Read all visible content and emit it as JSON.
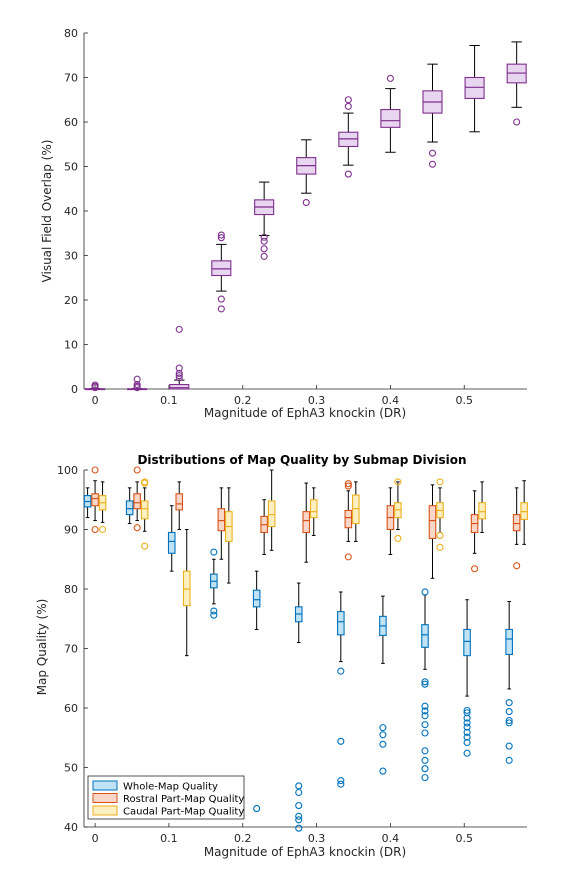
{
  "chart_data": [
    {
      "type": "boxplot",
      "title": "",
      "xlabel": "Magnitude of EphA3 knockin (DR)",
      "ylabel": "Visual Field Overlap (%)",
      "xlim": [
        -0.015,
        0.585
      ],
      "ylim": [
        0,
        80
      ],
      "xticks": [
        0,
        0.1,
        0.2,
        0.3,
        0.4,
        0.5
      ],
      "yticks": [
        0,
        10,
        20,
        30,
        40,
        50,
        60,
        70,
        80
      ],
      "grid": false,
      "colors": {
        "box_fill": "#e8d5ef",
        "box_edge": "#7e2f8e",
        "whisker": "#000000",
        "outlier": "#7e2f8e"
      },
      "boxes": [
        {
          "x": 0.0,
          "q1": 0.0,
          "median": 0.0,
          "q3": 0.05,
          "wlo": 0.0,
          "whi": 0.1,
          "outliers": [
            0.3,
            0.6,
            0.9
          ]
        },
        {
          "x": 0.057,
          "q1": 0.0,
          "median": 0.0,
          "q3": 0.05,
          "wlo": 0.0,
          "whi": 0.1,
          "outliers": [
            0.3,
            0.6,
            1.0,
            2.2
          ]
        },
        {
          "x": 0.114,
          "q1": 0.0,
          "median": 0.3,
          "q3": 1.0,
          "wlo": 0.0,
          "whi": 2.0,
          "outliers": [
            2.5,
            3.0,
            3.5,
            4.7,
            13.4
          ]
        },
        {
          "x": 0.171,
          "q1": 25.5,
          "median": 27.0,
          "q3": 28.8,
          "wlo": 22.0,
          "whi": 32.5,
          "outliers": [
            18.0,
            20.2,
            34.0,
            34.6
          ]
        },
        {
          "x": 0.229,
          "q1": 39.2,
          "median": 40.9,
          "q3": 42.5,
          "wlo": 34.5,
          "whi": 46.5,
          "outliers": [
            29.8,
            31.5,
            33.2,
            34.1
          ]
        },
        {
          "x": 0.286,
          "q1": 48.3,
          "median": 50.2,
          "q3": 52.0,
          "wlo": 44.0,
          "whi": 56.0,
          "outliers": [
            41.9
          ]
        },
        {
          "x": 0.343,
          "q1": 54.5,
          "median": 56.2,
          "q3": 57.7,
          "wlo": 50.3,
          "whi": 62.0,
          "outliers": [
            48.3,
            63.5,
            65.0
          ]
        },
        {
          "x": 0.4,
          "q1": 58.8,
          "median": 60.3,
          "q3": 62.8,
          "wlo": 53.2,
          "whi": 67.5,
          "outliers": [
            69.8
          ]
        },
        {
          "x": 0.457,
          "q1": 62.0,
          "median": 64.5,
          "q3": 67.0,
          "wlo": 55.5,
          "whi": 73.0,
          "outliers": [
            50.5,
            53.0
          ]
        },
        {
          "x": 0.514,
          "q1": 65.3,
          "median": 67.8,
          "q3": 70.0,
          "wlo": 57.8,
          "whi": 77.2,
          "outliers": []
        },
        {
          "x": 0.571,
          "q1": 68.8,
          "median": 71.0,
          "q3": 73.0,
          "wlo": 63.3,
          "whi": 78.0,
          "outliers": [
            60.0
          ]
        }
      ]
    },
    {
      "type": "boxplot",
      "title": "Distributions of Map Quality by Submap Division",
      "xlabel": "Magnitude of EphA3 knockin (DR)",
      "ylabel": "Map Quality (%)",
      "xlim": [
        -0.015,
        0.585
      ],
      "ylim": [
        40,
        100
      ],
      "xticks": [
        0,
        0.1,
        0.2,
        0.3,
        0.4,
        0.5
      ],
      "yticks": [
        40,
        50,
        60,
        70,
        80,
        90,
        100
      ],
      "grid": false,
      "legend_position": "bottom-left",
      "series": [
        {
          "name": "Whole-Map Quality",
          "fill": "#bfe3f5",
          "edge": "#0072bd",
          "boxes": [
            {
              "x": 0.0,
              "q1": 93.8,
              "median": 94.7,
              "q3": 95.7,
              "wlo": 92.0,
              "whi": 97.0,
              "outliers": []
            },
            {
              "x": 0.057,
              "q1": 92.5,
              "median": 93.5,
              "q3": 94.8,
              "wlo": 91.0,
              "whi": 97.0,
              "outliers": []
            },
            {
              "x": 0.114,
              "q1": 86.0,
              "median": 88.0,
              "q3": 89.5,
              "wlo": 83.0,
              "whi": 94.0,
              "outliers": []
            },
            {
              "x": 0.171,
              "q1": 80.2,
              "median": 81.3,
              "q3": 82.5,
              "wlo": 77.5,
              "whi": 85.0,
              "outliers": [
                75.6,
                76.3,
                86.2
              ]
            },
            {
              "x": 0.229,
              "q1": 77.0,
              "median": 78.2,
              "q3": 79.8,
              "wlo": 73.2,
              "whi": 83.0,
              "outliers": [
                43.1
              ]
            },
            {
              "x": 0.286,
              "q1": 74.5,
              "median": 75.8,
              "q3": 77.0,
              "wlo": 71.0,
              "whi": 81.0,
              "outliers": [
                39.8,
                41.2,
                41.8,
                43.6,
                45.8,
                46.9
              ]
            },
            {
              "x": 0.343,
              "q1": 72.3,
              "median": 74.5,
              "q3": 76.2,
              "wlo": 67.8,
              "whi": 79.5,
              "outliers": [
                47.2,
                47.8,
                54.4,
                66.2
              ]
            },
            {
              "x": 0.4,
              "q1": 72.2,
              "median": 73.8,
              "q3": 75.4,
              "wlo": 67.5,
              "whi": 78.8,
              "outliers": [
                49.4,
                53.9,
                55.5,
                56.7
              ]
            },
            {
              "x": 0.457,
              "q1": 70.2,
              "median": 72.3,
              "q3": 74.0,
              "wlo": 66.5,
              "whi": 79.0,
              "outliers": [
                48.3,
                49.8,
                51.2,
                52.8,
                55.8,
                57.2,
                58.7,
                59.5,
                60.3,
                64.0,
                64.4,
                79.5
              ]
            },
            {
              "x": 0.514,
              "q1": 68.8,
              "median": 71.2,
              "q3": 73.2,
              "wlo": 62.0,
              "whi": 78.2,
              "outliers": [
                52.4,
                54.2,
                55.1,
                55.9,
                56.8,
                57.5,
                58.3,
                59.2,
                59.6
              ]
            },
            {
              "x": 0.571,
              "q1": 69.0,
              "median": 71.6,
              "q3": 73.2,
              "wlo": 63.2,
              "whi": 77.9,
              "outliers": [
                51.2,
                53.6,
                57.5,
                57.9,
                59.4,
                60.9
              ]
            }
          ]
        },
        {
          "name": "Rostral Part-Map Quality",
          "fill": "#f9d7c8",
          "edge": "#d95319",
          "boxes": [
            {
              "x": 0.0,
              "q1": 94.0,
              "median": 95.2,
              "q3": 96.0,
              "wlo": 91.5,
              "whi": 98.2,
              "outliers": [
                90.0,
                100.0
              ]
            },
            {
              "x": 0.057,
              "q1": 93.5,
              "median": 94.5,
              "q3": 96.0,
              "wlo": 91.5,
              "whi": 98.0,
              "outliers": [
                90.3,
                100.0
              ]
            },
            {
              "x": 0.114,
              "q1": 93.3,
              "median": 94.3,
              "q3": 96.0,
              "wlo": 90.0,
              "whi": 98.0,
              "outliers": []
            },
            {
              "x": 0.171,
              "q1": 89.8,
              "median": 91.5,
              "q3": 93.5,
              "wlo": 85.0,
              "whi": 97.0,
              "outliers": []
            },
            {
              "x": 0.229,
              "q1": 89.5,
              "median": 90.8,
              "q3": 92.2,
              "wlo": 85.8,
              "whi": 95.0,
              "outliers": []
            },
            {
              "x": 0.286,
              "q1": 89.5,
              "median": 91.5,
              "q3": 93.0,
              "wlo": 84.5,
              "whi": 97.8,
              "outliers": []
            },
            {
              "x": 0.343,
              "q1": 90.3,
              "median": 92.0,
              "q3": 93.2,
              "wlo": 88.0,
              "whi": 96.5,
              "outliers": [
                85.4,
                97.3,
                97.7
              ]
            },
            {
              "x": 0.4,
              "q1": 90.0,
              "median": 92.0,
              "q3": 94.0,
              "wlo": 85.8,
              "whi": 97.0,
              "outliers": []
            },
            {
              "x": 0.457,
              "q1": 88.5,
              "median": 91.5,
              "q3": 94.0,
              "wlo": 81.8,
              "whi": 97.5,
              "outliers": []
            },
            {
              "x": 0.514,
              "q1": 89.5,
              "median": 91.0,
              "q3": 92.5,
              "wlo": 86.0,
              "whi": 96.5,
              "outliers": [
                83.4
              ]
            },
            {
              "x": 0.571,
              "q1": 89.8,
              "median": 91.0,
              "q3": 92.5,
              "wlo": 87.5,
              "whi": 97.0,
              "outliers": [
                83.9
              ]
            }
          ]
        },
        {
          "name": "Caudal Part-Map Quality",
          "fill": "#fdefc0",
          "edge": "#edb120",
          "boxes": [
            {
              "x": 0.0,
              "q1": 93.3,
              "median": 94.5,
              "q3": 95.7,
              "wlo": 91.2,
              "whi": 98.0,
              "outliers": [
                90.0
              ]
            },
            {
              "x": 0.057,
              "q1": 91.8,
              "median": 93.5,
              "q3": 94.8,
              "wlo": 89.7,
              "whi": 97.0,
              "outliers": [
                87.2,
                97.8,
                98.0
              ]
            },
            {
              "x": 0.114,
              "q1": 77.2,
              "median": 80.0,
              "q3": 83.0,
              "wlo": 68.8,
              "whi": 90.0,
              "outliers": []
            },
            {
              "x": 0.171,
              "q1": 88.0,
              "median": 90.5,
              "q3": 93.0,
              "wlo": 81.0,
              "whi": 97.0,
              "outliers": []
            },
            {
              "x": 0.229,
              "q1": 90.5,
              "median": 92.5,
              "q3": 94.8,
              "wlo": 86.5,
              "whi": 100.0,
              "outliers": []
            },
            {
              "x": 0.286,
              "q1": 92.0,
              "median": 93.0,
              "q3": 95.0,
              "wlo": 89.0,
              "whi": 97.0,
              "outliers": []
            },
            {
              "x": 0.343,
              "q1": 91.0,
              "median": 93.5,
              "q3": 95.8,
              "wlo": 88.0,
              "whi": 98.0,
              "outliers": []
            },
            {
              "x": 0.4,
              "q1": 92.0,
              "median": 93.3,
              "q3": 94.5,
              "wlo": 90.0,
              "whi": 98.0,
              "outliers": [
                88.5,
                98.0
              ]
            },
            {
              "x": 0.457,
              "q1": 92.0,
              "median": 93.2,
              "q3": 94.5,
              "wlo": 89.5,
              "whi": 97.0,
              "outliers": [
                87.0,
                89.0,
                98.0
              ]
            },
            {
              "x": 0.514,
              "q1": 91.8,
              "median": 93.0,
              "q3": 94.5,
              "wlo": 89.5,
              "whi": 98.0,
              "outliers": []
            },
            {
              "x": 0.571,
              "q1": 91.7,
              "median": 93.0,
              "q3": 94.5,
              "wlo": 87.5,
              "whi": 98.2,
              "outliers": []
            }
          ]
        }
      ]
    }
  ]
}
